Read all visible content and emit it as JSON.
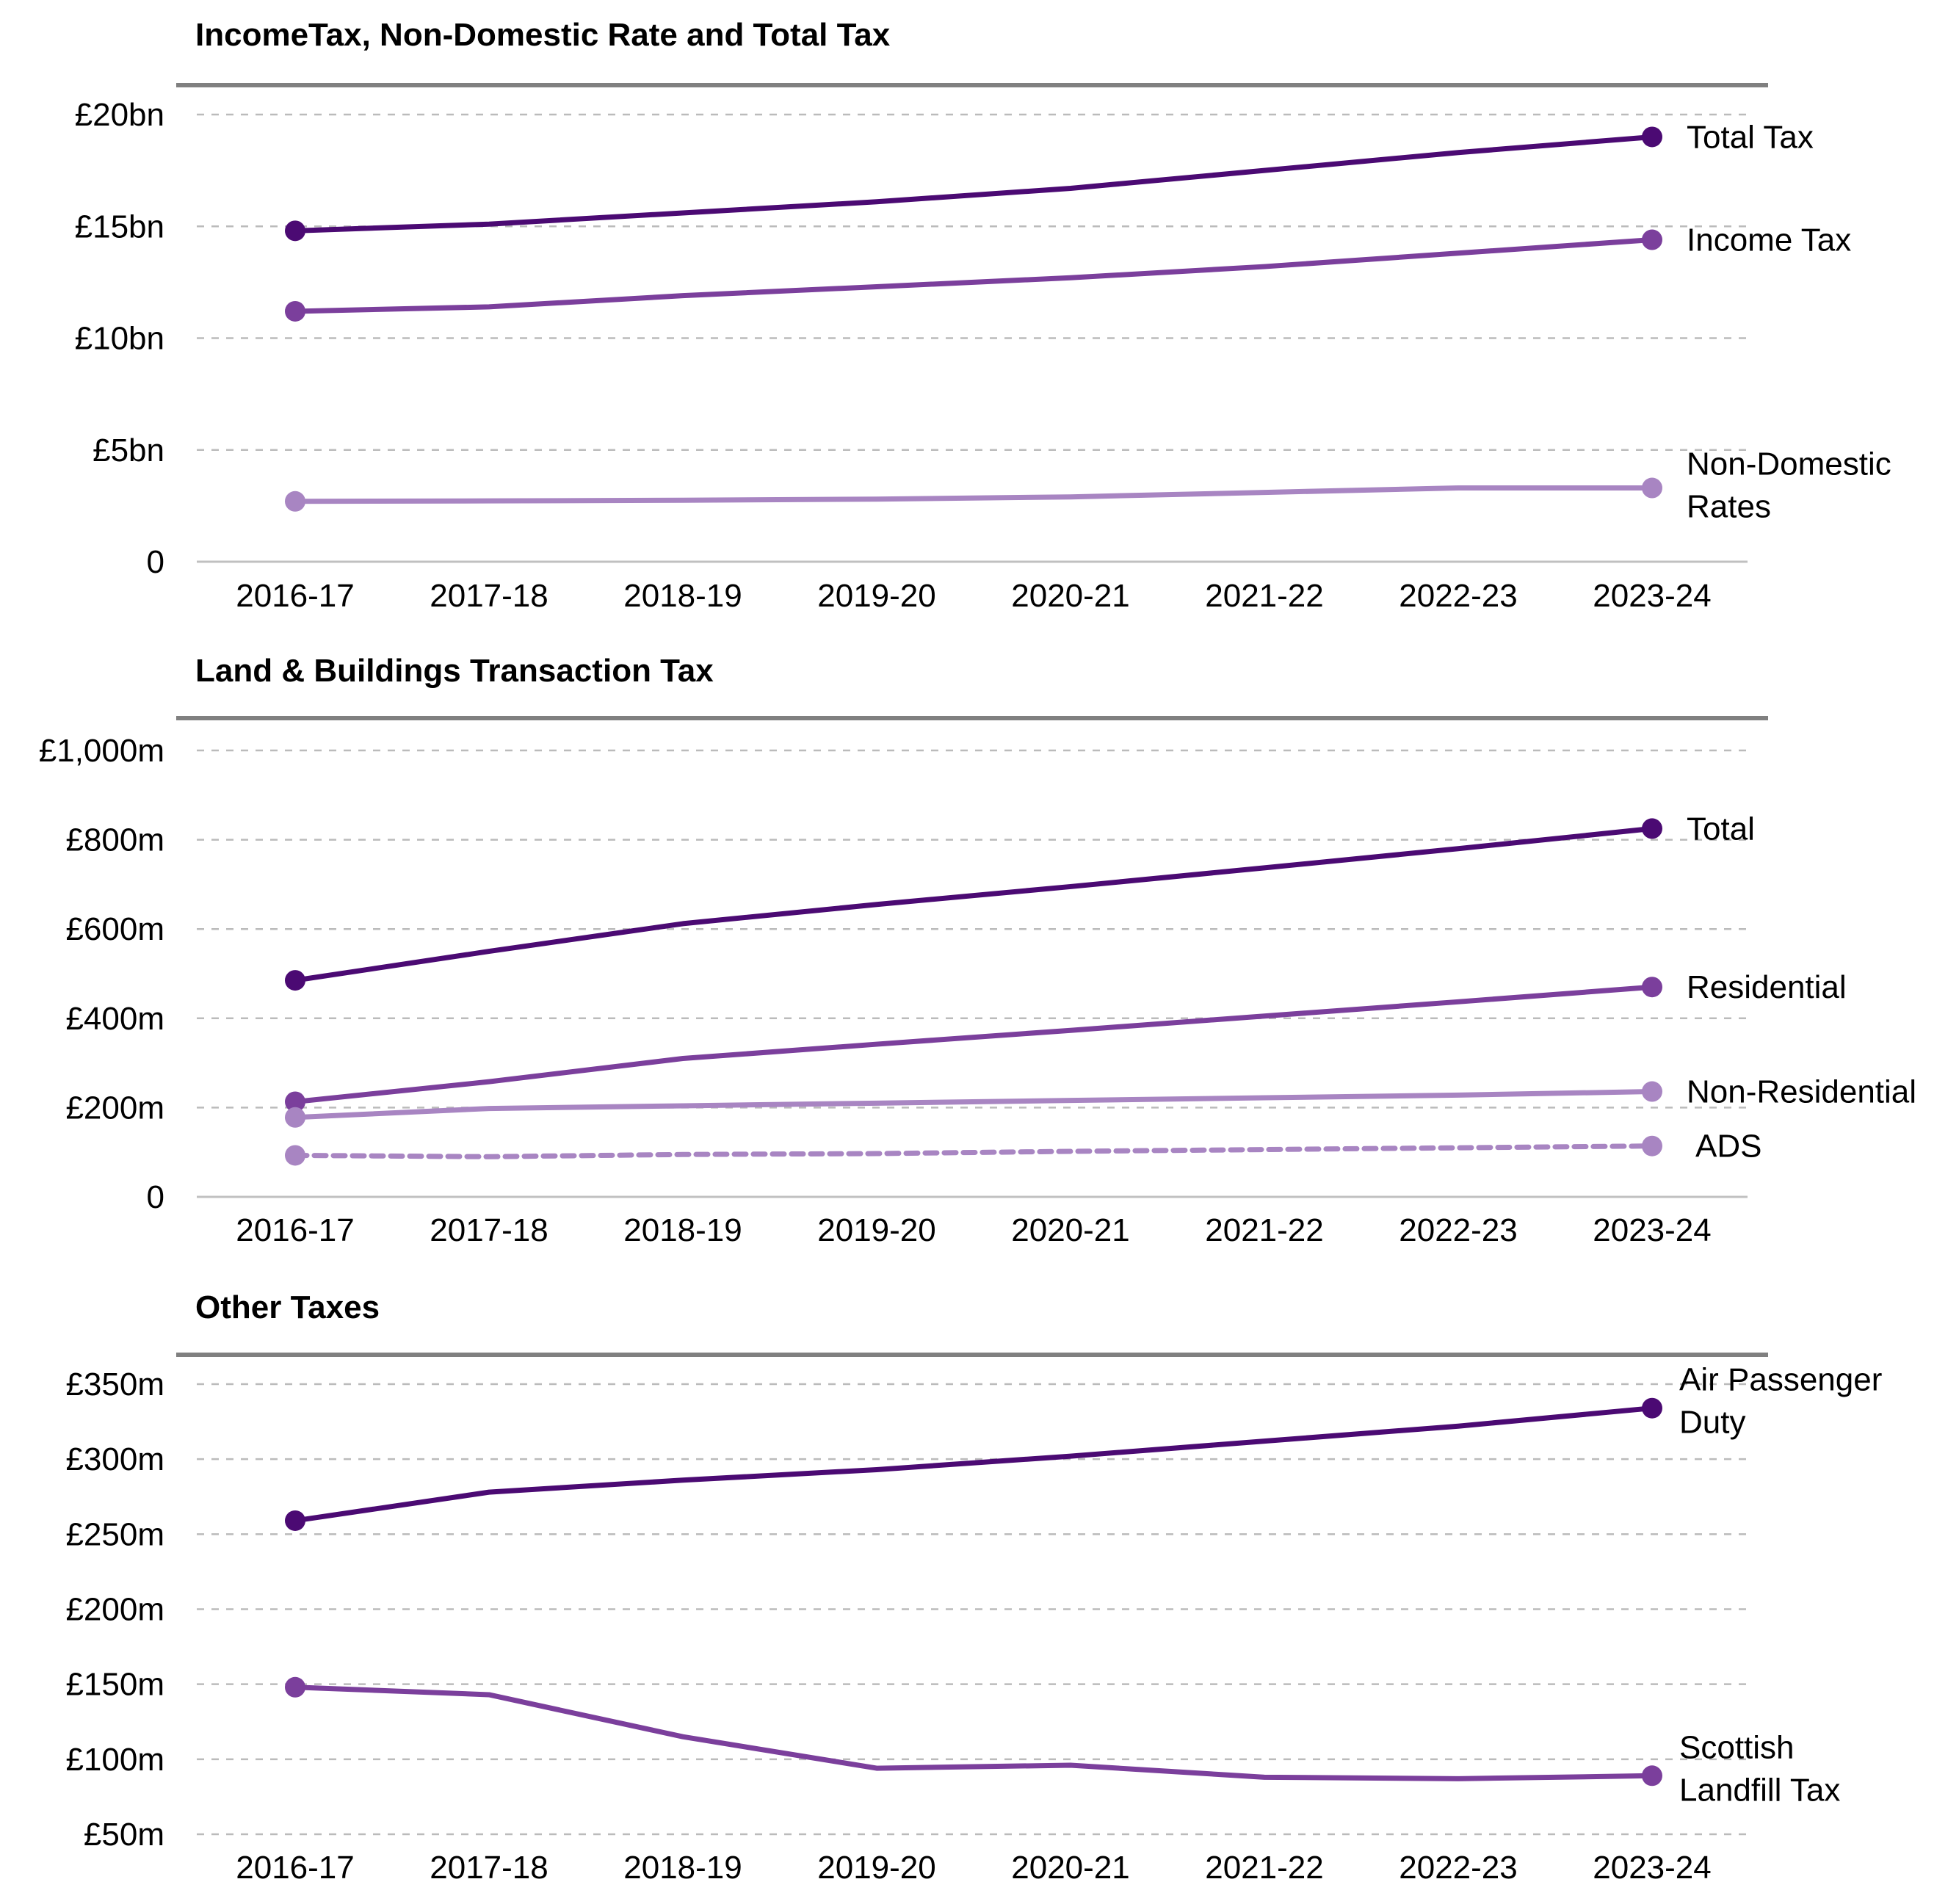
{
  "colors": {
    "dark": "#4b0a73",
    "mid": "#7b3f9c",
    "light": "#a885c2",
    "grid": "#bbbbbb",
    "rule": "#808080",
    "axis": "#c0c0c0"
  },
  "chart_data": [
    {
      "type": "line",
      "title": "IncomeTax, Non-Domestic Rate and Total Tax",
      "categories": [
        "2016-17",
        "2017-18",
        "2018-19",
        "2019-20",
        "2020-21",
        "2021-22",
        "2022-23",
        "2023-24"
      ],
      "ylim": [
        0,
        20
      ],
      "yticks": [
        {
          "value": 0,
          "label": "0"
        },
        {
          "value": 5,
          "label": "£5bn"
        },
        {
          "value": 10,
          "label": "£10bn"
        },
        {
          "value": 15,
          "label": "£15bn"
        },
        {
          "value": 20,
          "label": "£20bn"
        }
      ],
      "grid": true,
      "series": [
        {
          "name": "Total Tax",
          "label_lines": [
            "Total Tax"
          ],
          "color": "dark",
          "dashed": false,
          "values": [
            14.8,
            15.1,
            15.6,
            16.1,
            16.7,
            17.5,
            18.3,
            19.0
          ]
        },
        {
          "name": "Income Tax",
          "label_lines": [
            "Income Tax"
          ],
          "color": "mid",
          "dashed": false,
          "values": [
            11.2,
            11.4,
            11.9,
            12.3,
            12.7,
            13.2,
            13.8,
            14.4
          ]
        },
        {
          "name": "Non-Domestic Rates",
          "label_lines": [
            "Non-Domestic",
            "Rates"
          ],
          "color": "light",
          "dashed": false,
          "values": [
            2.7,
            2.72,
            2.75,
            2.8,
            2.9,
            3.1,
            3.3,
            3.3
          ]
        }
      ]
    },
    {
      "type": "line",
      "title": "Land & Buildings Transaction Tax",
      "categories": [
        "2016-17",
        "2017-18",
        "2018-19",
        "2019-20",
        "2020-21",
        "2021-22",
        "2022-23",
        "2023-24"
      ],
      "ylim": [
        0,
        1000
      ],
      "yticks": [
        {
          "value": 0,
          "label": "0"
        },
        {
          "value": 200,
          "label": "£200m"
        },
        {
          "value": 400,
          "label": "£400m"
        },
        {
          "value": 600,
          "label": "£600m"
        },
        {
          "value": 800,
          "label": "£800m"
        },
        {
          "value": 1000,
          "label": "£1,000m"
        }
      ],
      "grid": true,
      "series": [
        {
          "name": "Total",
          "label_lines": [
            "Total"
          ],
          "color": "dark",
          "dashed": false,
          "values": [
            485,
            550,
            612,
            655,
            695,
            737,
            780,
            825
          ]
        },
        {
          "name": "Residential",
          "label_lines": [
            "Residential"
          ],
          "color": "mid",
          "dashed": false,
          "values": [
            213,
            258,
            310,
            342,
            373,
            405,
            437,
            470
          ]
        },
        {
          "name": "Non-Residential",
          "label_lines": [
            "Non-Residential"
          ],
          "color": "light",
          "dashed": false,
          "values": [
            178,
            198,
            204,
            210,
            216,
            222,
            228,
            236
          ]
        },
        {
          "name": "ADS",
          "label_lines": [
            "ADS"
          ],
          "color": "light",
          "dashed": true,
          "values": [
            93,
            90,
            95,
            97,
            102,
            106,
            110,
            114
          ]
        }
      ]
    },
    {
      "type": "line",
      "title": "Other Taxes",
      "categories": [
        "2016-17",
        "2017-18",
        "2018-19",
        "2019-20",
        "2020-21",
        "2021-22",
        "2022-23",
        "2023-24"
      ],
      "ylim": [
        50,
        350
      ],
      "yticks": [
        {
          "value": 50,
          "label": "£50m"
        },
        {
          "value": 100,
          "label": "£100m"
        },
        {
          "value": 150,
          "label": "£150m"
        },
        {
          "value": 200,
          "label": "£200m"
        },
        {
          "value": 250,
          "label": "£250m"
        },
        {
          "value": 300,
          "label": "£300m"
        },
        {
          "value": 350,
          "label": "£350m"
        }
      ],
      "grid": true,
      "series": [
        {
          "name": "Air Passenger Duty",
          "label_lines": [
            "Air Passenger",
            "Duty"
          ],
          "color": "dark",
          "dashed": false,
          "values": [
            259,
            278,
            286,
            293,
            302,
            312,
            322,
            334
          ]
        },
        {
          "name": "Scottish Landfill Tax",
          "label_lines": [
            "Scottish",
            "Landfill Tax"
          ],
          "color": "mid",
          "dashed": false,
          "values": [
            148,
            143,
            115,
            94,
            96,
            88,
            87,
            89
          ]
        }
      ]
    }
  ]
}
